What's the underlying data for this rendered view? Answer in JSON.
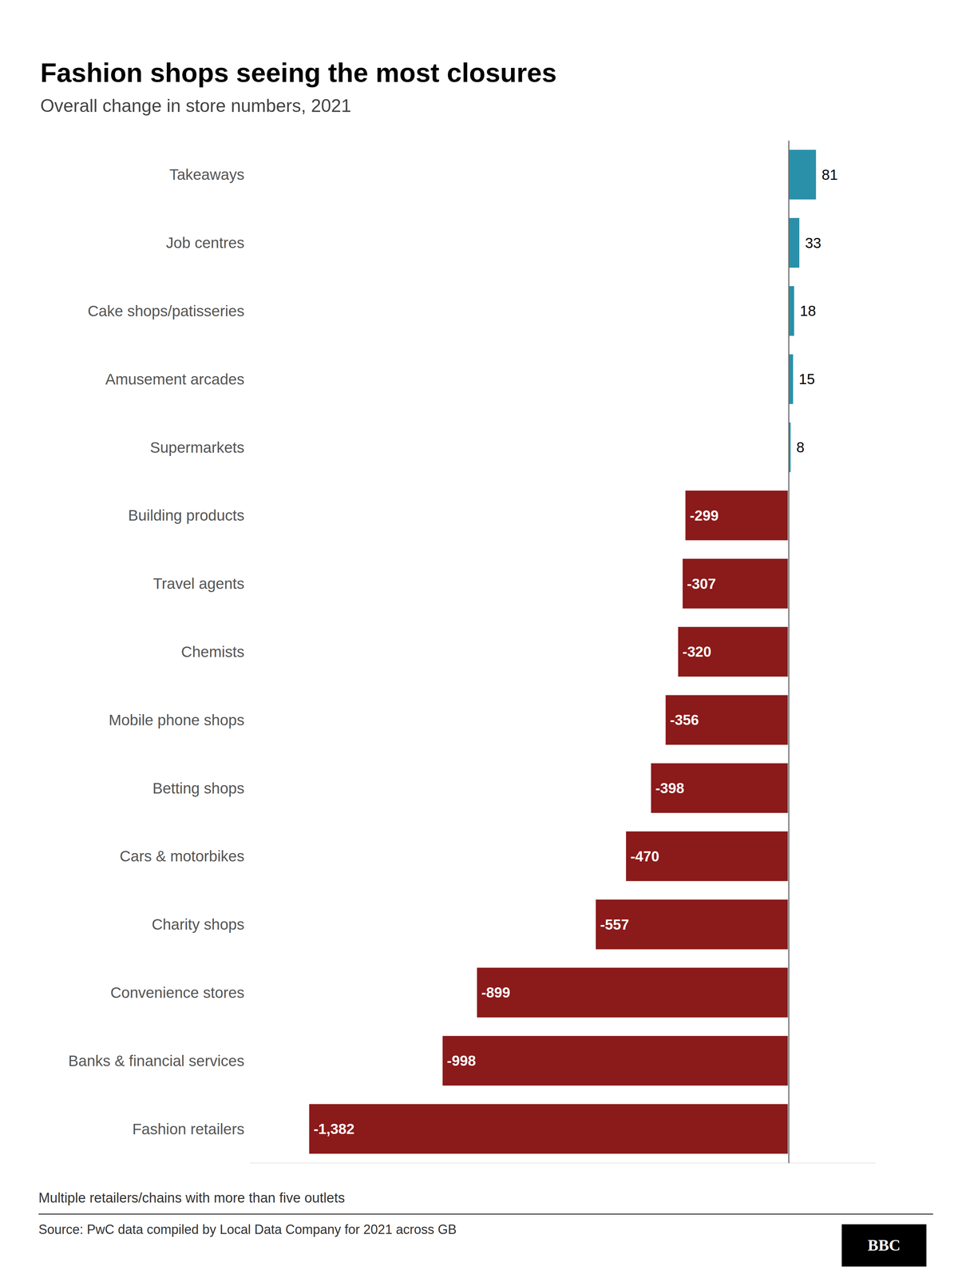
{
  "chart_data": {
    "type": "bar",
    "orientation": "horizontal",
    "title": "Fashion shops seeing the most closures",
    "subtitle": "Overall change in store numbers, 2021",
    "footnote": "Multiple retailers/chains with more than five outlets",
    "source": "Source: PwC data compiled by Local Data Company for 2021 across GB",
    "annotations": [
      "BBC"
    ],
    "categories": [
      "Takeaways",
      "Job centres",
      "Cake shops/patisseries",
      "Amusement arcades",
      "Supermarkets",
      "Building products",
      "Travel agents",
      "Chemists",
      "Mobile phone shops",
      "Betting shops",
      "Cars & motorbikes",
      "Charity shops",
      "Convenience stores",
      "Banks & financial services",
      "Fashion retailers"
    ],
    "values": [
      81,
      33,
      18,
      15,
      8,
      -299,
      -307,
      -320,
      -356,
      -398,
      -470,
      -557,
      -899,
      -998,
      -1382
    ],
    "value_labels": [
      "81",
      "33",
      "18",
      "15",
      "8",
      "-299",
      "-307",
      "-320",
      "-356",
      "-398",
      "-470",
      "-557",
      "-899",
      "-998",
      "-1,382"
    ],
    "colors": [
      "#2a8fa8",
      "#2a8fa8",
      "#2a8fa8",
      "#2a8fa8",
      "#2a8fa8",
      "#8b1a1a",
      "#8b1a1a",
      "#8b1a1a",
      "#8b1a1a",
      "#8b1a1a",
      "#8b1a1a",
      "#8b1a1a",
      "#8b1a1a",
      "#8b1a1a",
      "#8b1a1a"
    ],
    "xlim": [
      -1550,
      250
    ],
    "data_labels": true,
    "tick_labels": "y",
    "grid": false
  }
}
